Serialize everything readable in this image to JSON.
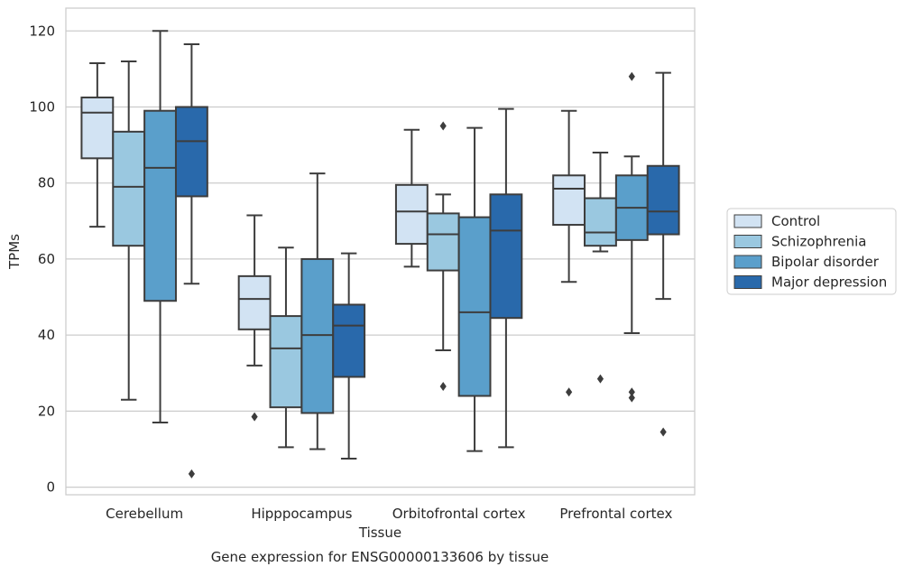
{
  "chart_data": {
    "type": "box",
    "title": "Gene expression for ENSG00000133606 by tissue",
    "xlabel": "Tissue",
    "ylabel": "TPMs",
    "ylim": [
      -2,
      126
    ],
    "yticks": [
      0,
      20,
      40,
      60,
      80,
      100,
      120
    ],
    "grid": "horizontal",
    "legend_position": "right",
    "categories": [
      "Cerebellum",
      "Hipppocampus",
      "Orbitofrontal cortex",
      "Prefrontal cortex"
    ],
    "series": [
      {
        "name": "Control",
        "color": "#d2e3f3",
        "boxes": [
          {
            "whislo": 68.5,
            "q1": 86.5,
            "med": 98.5,
            "q3": 102.5,
            "whishi": 111.5,
            "fliers": []
          },
          {
            "whislo": 32,
            "q1": 41.5,
            "med": 49.5,
            "q3": 55.5,
            "whishi": 71.5,
            "fliers": [
              18.5
            ]
          },
          {
            "whislo": 58,
            "q1": 64,
            "med": 72.5,
            "q3": 79.5,
            "whishi": 94,
            "fliers": []
          },
          {
            "whislo": 54,
            "q1": 69,
            "med": 78.5,
            "q3": 82,
            "whishi": 99,
            "fliers": [
              25
            ]
          }
        ]
      },
      {
        "name": "Schizophrenia",
        "color": "#9ac8e0",
        "boxes": [
          {
            "whislo": 23,
            "q1": 63.5,
            "med": 79,
            "q3": 93.5,
            "whishi": 112,
            "fliers": []
          },
          {
            "whislo": 10.5,
            "q1": 21,
            "med": 36.5,
            "q3": 45,
            "whishi": 63,
            "fliers": []
          },
          {
            "whislo": 36,
            "q1": 57,
            "med": 66.5,
            "q3": 72,
            "whishi": 77,
            "fliers": [
              95,
              26.5
            ]
          },
          {
            "whislo": 62,
            "q1": 63.5,
            "med": 67,
            "q3": 76,
            "whishi": 88,
            "fliers": [
              28.5
            ]
          }
        ]
      },
      {
        "name": "Bipolar disorder",
        "color": "#5a9fcb",
        "boxes": [
          {
            "whislo": 17,
            "q1": 49,
            "med": 84,
            "q3": 99,
            "whishi": 120,
            "fliers": []
          },
          {
            "whislo": 10,
            "q1": 19.5,
            "med": 40,
            "q3": 60,
            "whishi": 82.5,
            "fliers": []
          },
          {
            "whislo": 9.5,
            "q1": 24,
            "med": 46,
            "q3": 71,
            "whishi": 94.5,
            "fliers": []
          },
          {
            "whislo": 40.5,
            "q1": 65,
            "med": 73.5,
            "q3": 82,
            "whishi": 87,
            "fliers": [
              108,
              25,
              23.5
            ]
          }
        ]
      },
      {
        "name": "Major depression",
        "color": "#2969ab",
        "boxes": [
          {
            "whislo": 53.5,
            "q1": 76.5,
            "med": 91,
            "q3": 100,
            "whishi": 116.5,
            "fliers": [
              3.5
            ]
          },
          {
            "whislo": 7.5,
            "q1": 29,
            "med": 42.5,
            "q3": 48,
            "whishi": 61.5,
            "fliers": []
          },
          {
            "whislo": 10.5,
            "q1": 44.5,
            "med": 67.5,
            "q3": 77,
            "whishi": 99.5,
            "fliers": []
          },
          {
            "whislo": 49.5,
            "q1": 66.5,
            "med": 72.5,
            "q3": 84.5,
            "whishi": 109,
            "fliers": [
              14.5
            ]
          }
        ]
      }
    ]
  }
}
